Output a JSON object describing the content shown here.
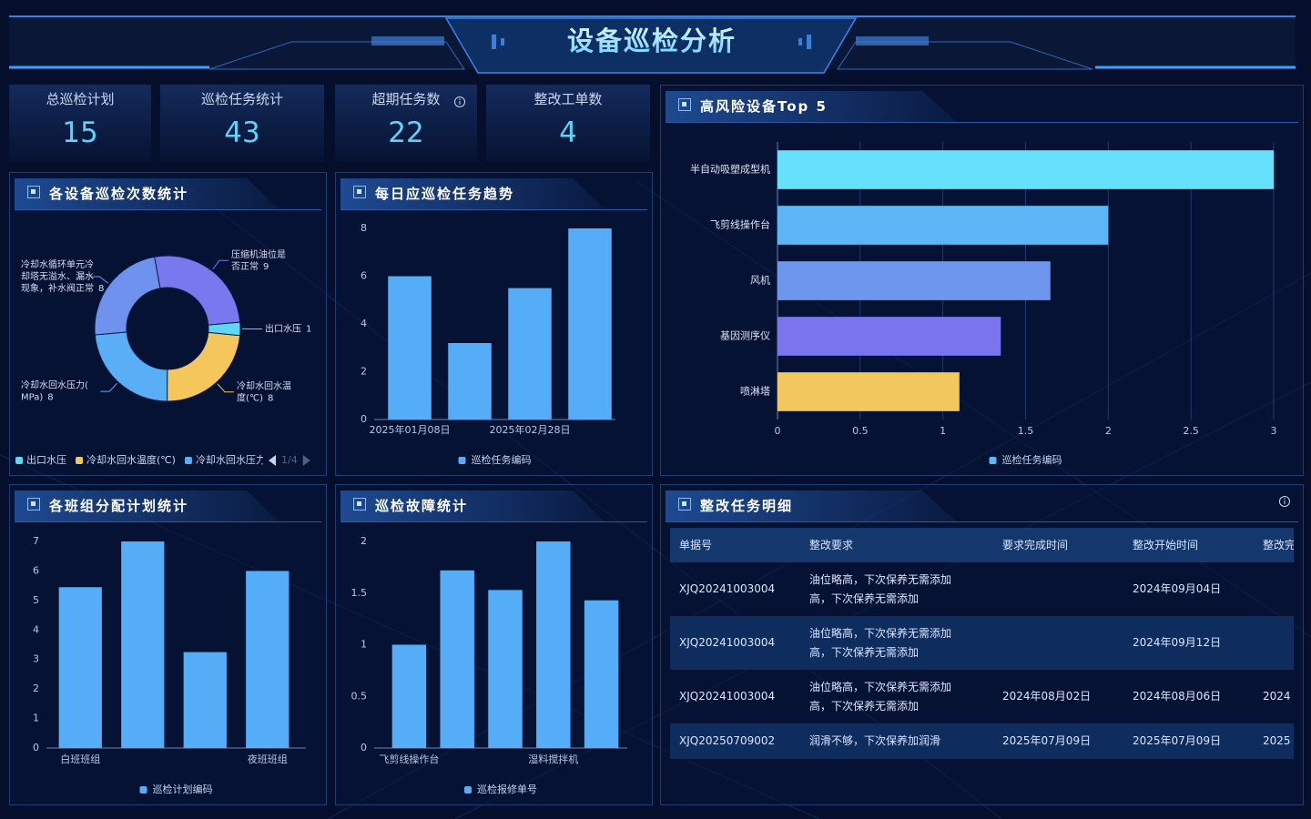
{
  "header": {
    "title": "设备巡检分析"
  },
  "stats": [
    {
      "label": "总巡检计划",
      "value": 15
    },
    {
      "label": "巡检任务统计",
      "value": 43
    },
    {
      "label": "超期任务数",
      "value": 22
    },
    {
      "label": "整改工单数",
      "value": 4
    }
  ],
  "chart_data": [
    {
      "type": "pie",
      "title": "各设备巡检次数统计",
      "labels": [
        "出口水压",
        "冷却水回水温度(℃)",
        "冷却水回水压力(MPa)",
        "冷却水循环单元冷却塔无溢水、漏水现象，补水阀正常",
        "压缩机油位是否正常"
      ],
      "values": [
        1,
        8,
        8,
        8,
        9
      ],
      "colors": [
        "#5fd6f5",
        "#f5c65c",
        "#5aaef6",
        "#6f92ee",
        "#7a78ee"
      ],
      "legend_page": "1/4"
    },
    {
      "type": "bar",
      "title": "每日应巡检任务趋势",
      "categories": [
        "2025年01月08日",
        null,
        "2025年02月28日",
        null
      ],
      "series": [
        {
          "name": "巡检任务编码",
          "color": "#55adf7",
          "values": [
            6,
            3.2,
            5.5,
            8
          ]
        }
      ],
      "ylim": [
        0,
        8
      ],
      "yticks": [
        0,
        2,
        4,
        6,
        8
      ]
    },
    {
      "type": "hbar",
      "title": "高风险设备Top 5",
      "categories": [
        "半自动吸塑成型机",
        "飞剪线操作台",
        "风机",
        "基因测序仪",
        "喷淋塔"
      ],
      "series": [
        {
          "name": "巡检任务编码",
          "color": "#5ab6f6",
          "values": [
            3,
            2,
            1.65,
            1.35,
            1.1
          ],
          "bar_colors": [
            "#66e0fb",
            "#5cb6f6",
            "#6f96ee",
            "#7a74ee",
            "#f2c75e"
          ]
        }
      ],
      "xlim": [
        0,
        3
      ],
      "xticks": [
        0,
        0.5,
        1,
        1.5,
        2,
        2.5,
        3
      ],
      "grid": true
    },
    {
      "type": "bar",
      "title": "各班组分配计划统计",
      "categories": [
        "白班班组",
        null,
        null,
        "夜班班组"
      ],
      "series": [
        {
          "name": "巡检计划编码",
          "color": "#55adf7",
          "values": [
            5.45,
            7,
            3.25,
            6
          ]
        }
      ],
      "ylim": [
        0,
        7
      ],
      "yticks": [
        0,
        1,
        2,
        3,
        4,
        5,
        6,
        7
      ]
    },
    {
      "type": "bar",
      "title": "巡检故障统计",
      "categories": [
        "飞剪线操作台",
        null,
        null,
        "湿料搅拌机",
        null
      ],
      "series": [
        {
          "name": "巡检报修单号",
          "color": "#55adf7",
          "values": [
            1,
            1.72,
            1.53,
            2,
            1.43
          ]
        }
      ],
      "ylim": [
        0,
        2
      ],
      "yticks": [
        0,
        0.5,
        1,
        1.5,
        2
      ]
    }
  ],
  "table": {
    "title": "整改任务明细",
    "columns": [
      "单据号",
      "整改要求",
      "要求完成时间",
      "整改开始时间",
      "整改完成时间"
    ],
    "rows": [
      [
        "XJQ20241003004",
        "油位略高，下次保养无需添加高，下次保养无需添加",
        null,
        "2024年09月04日",
        null
      ],
      [
        "XJQ20241003004",
        "油位略高，下次保养无需添加高，下次保养无需添加",
        null,
        "2024年09月12日",
        null
      ],
      [
        "XJQ20241003004",
        "油位略高，下次保养无需添加高，下次保养无需添加",
        "2024年08月02日",
        "2024年08月06日",
        "2024"
      ],
      [
        "XJQ20250709002",
        "润滑不够，下次保养加润滑",
        "2025年07月09日",
        "2025年07月09日",
        "2025"
      ]
    ]
  }
}
